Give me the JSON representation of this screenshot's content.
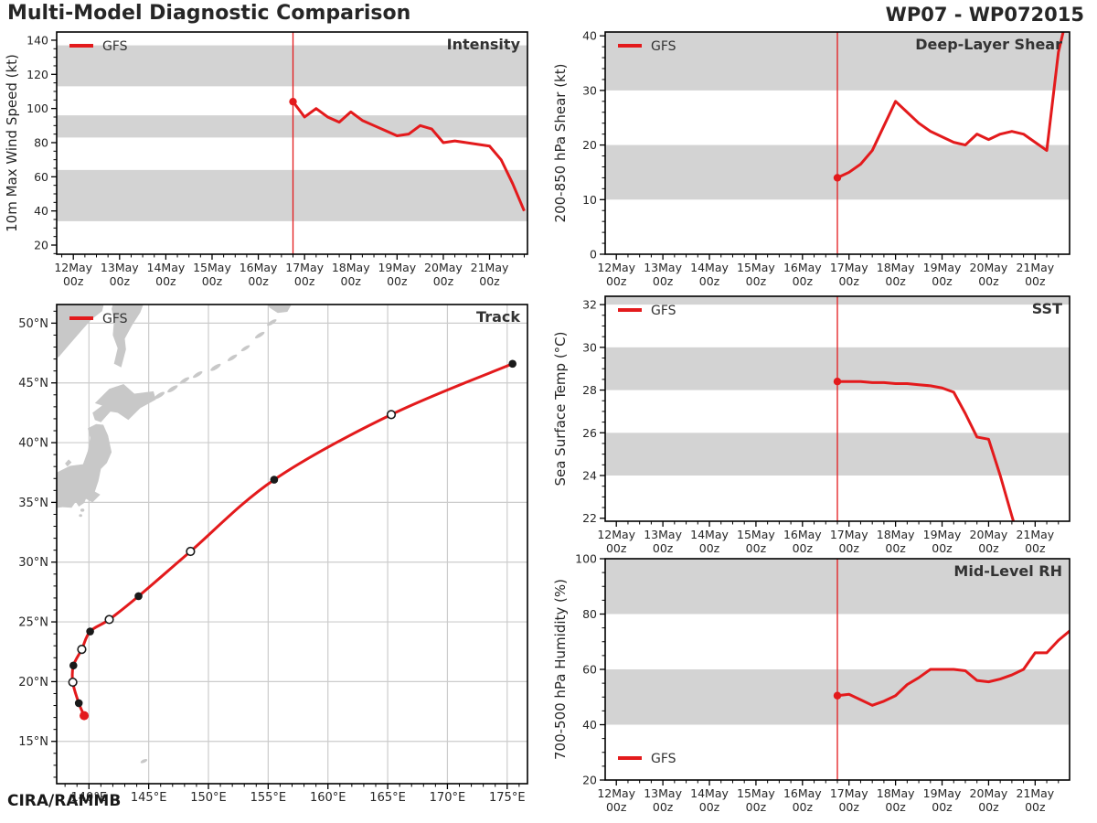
{
  "header": {
    "title": "Multi-Model Diagnostic Comparison",
    "storm_id": "WP07 - WP072015"
  },
  "footer": {
    "credit": "CIRA/RAMMB"
  },
  "legend_label": "GFS",
  "colors": {
    "accent_red": "#e31a1c",
    "band_gray": "#d3d3d3",
    "land_gray": "#c8c8c8",
    "grid_gray": "#cccccc",
    "spine_black": "#000000",
    "text_dark": "#262626",
    "marker_black": "#1a1a1a",
    "marker_open_fill": "#ffffff"
  },
  "time_axis": {
    "tick_days": [
      "12May",
      "13May",
      "14May",
      "15May",
      "16May",
      "17May",
      "18May",
      "19May",
      "20May",
      "21May"
    ],
    "tick_values": [
      12,
      13,
      14,
      15,
      16,
      17,
      18,
      19,
      20,
      21
    ],
    "tick_hour": "00z",
    "forecast_start_day": 16.75
  },
  "chart_data": [
    {
      "id": "intensity",
      "type": "line",
      "title": "Intensity",
      "ylabel": "10m Max Wind Speed (kt)",
      "ylim": [
        14.65,
        144.8
      ],
      "yticks": [
        20,
        40,
        60,
        80,
        100,
        120,
        140
      ],
      "yminor_step": 5,
      "bands": [
        [
          34,
          64
        ],
        [
          83,
          96
        ],
        [
          113,
          137
        ]
      ],
      "legend_position": "top-left",
      "series": [
        {
          "name": "GFS",
          "x": [
            16.75,
            17.0,
            17.25,
            17.5,
            17.75,
            18.0,
            18.25,
            18.5,
            18.75,
            19.0,
            19.25,
            19.5,
            19.75,
            20.0,
            20.25,
            20.5,
            20.75,
            21.0,
            21.25,
            21.5,
            21.75
          ],
          "values": [
            104,
            95,
            100,
            95,
            92,
            98,
            93,
            90,
            87,
            84,
            85,
            90,
            88,
            80,
            81,
            80,
            79,
            78,
            70,
            56,
            40
          ]
        }
      ]
    },
    {
      "id": "shear",
      "type": "line",
      "title": "Deep-Layer Shear",
      "ylabel": "200-850 hPa Shear (kt)",
      "ylim": [
        0,
        40.7
      ],
      "yticks": [
        0,
        10,
        20,
        30,
        40
      ],
      "yminor_step": 2,
      "bands": [
        [
          10,
          20
        ],
        [
          30,
          40.7
        ]
      ],
      "legend_position": "top-left",
      "series": [
        {
          "name": "GFS",
          "x": [
            16.75,
            17.0,
            17.25,
            17.5,
            17.75,
            18.0,
            18.25,
            18.5,
            18.75,
            19.0,
            19.25,
            19.5,
            19.75,
            20.0,
            20.25,
            20.5,
            20.75,
            21.0,
            21.25,
            21.5,
            21.75
          ],
          "values": [
            14,
            15,
            16.5,
            19,
            23.5,
            28,
            26,
            24,
            22.5,
            21.5,
            20.5,
            20,
            22,
            21,
            22,
            22.5,
            22,
            20.5,
            19,
            37,
            46
          ]
        }
      ]
    },
    {
      "id": "sst",
      "type": "line",
      "title": "SST",
      "ylabel": "Sea Surface Temp (°C)",
      "ylim": [
        21.86,
        32.39
      ],
      "yticks": [
        22,
        24,
        26,
        28,
        30,
        32
      ],
      "yminor_step": 0.5,
      "bands": [
        [
          24,
          26
        ],
        [
          28,
          30
        ],
        [
          32,
          32.39
        ]
      ],
      "legend_position": "top-left",
      "series": [
        {
          "name": "GFS",
          "x": [
            16.75,
            17.0,
            17.25,
            17.5,
            17.75,
            18.0,
            18.25,
            18.5,
            18.75,
            19.0,
            19.25,
            19.5,
            19.75,
            20.0,
            20.25,
            20.5,
            20.75
          ],
          "values": [
            28.4,
            28.4,
            28.4,
            28.35,
            28.35,
            28.3,
            28.3,
            28.25,
            28.2,
            28.1,
            27.9,
            26.9,
            25.8,
            25.7,
            24.0,
            22.1,
            20.3
          ]
        }
      ]
    },
    {
      "id": "rh",
      "type": "line",
      "title": "Mid-Level RH",
      "ylabel": "700-500 hPa Humidity (%)",
      "ylim": [
        20,
        100
      ],
      "yticks": [
        20,
        40,
        60,
        80,
        100
      ],
      "yminor_step": 5,
      "bands": [
        [
          40,
          60
        ],
        [
          80,
          100
        ]
      ],
      "legend_position": "bottom-left",
      "series": [
        {
          "name": "GFS",
          "x": [
            16.75,
            17.0,
            17.25,
            17.5,
            17.75,
            18.0,
            18.25,
            18.5,
            18.75,
            19.0,
            19.25,
            19.5,
            19.75,
            20.0,
            20.25,
            20.5,
            20.75,
            21.0,
            21.25,
            21.5,
            21.75
          ],
          "values": [
            50.5,
            51,
            49,
            47,
            48.5,
            50.5,
            54.5,
            57,
            60,
            60,
            60,
            59.5,
            56,
            55.5,
            56.5,
            58,
            60,
            66,
            66,
            70.5,
            74
          ]
        }
      ]
    },
    {
      "id": "track",
      "type": "map",
      "title": "Track",
      "lon_range": [
        137.3,
        176.7
      ],
      "lat_range": [
        11.46,
        51.56
      ],
      "lon_ticks": {
        "values": [
          140,
          145,
          150,
          155,
          160,
          165,
          170,
          175
        ],
        "labels": [
          "140°E",
          "145°E",
          "150°E",
          "155°E",
          "160°E",
          "165°E",
          "170°E",
          "175°E"
        ]
      },
      "lat_ticks": {
        "values": [
          15,
          20,
          25,
          30,
          35,
          40,
          45,
          50
        ],
        "labels": [
          "15°N",
          "20°N",
          "25°N",
          "30°N",
          "35°N",
          "40°N",
          "45°N",
          "50°N"
        ]
      },
      "points": [
        {
          "lon": 139.6,
          "lat": 17.15,
          "marker": "start"
        },
        {
          "lon": 139.15,
          "lat": 18.2,
          "marker": "filled"
        },
        {
          "lon": 138.65,
          "lat": 19.95,
          "marker": "open"
        },
        {
          "lon": 138.7,
          "lat": 21.35,
          "marker": "filled"
        },
        {
          "lon": 139.4,
          "lat": 22.7,
          "marker": "open"
        },
        {
          "lon": 140.1,
          "lat": 24.2,
          "marker": "filled"
        },
        {
          "lon": 141.7,
          "lat": 25.2,
          "marker": "open"
        },
        {
          "lon": 144.15,
          "lat": 27.15,
          "marker": "filled"
        },
        {
          "lon": 148.5,
          "lat": 30.9,
          "marker": "open"
        },
        {
          "lon": 155.5,
          "lat": 36.9,
          "marker": "filled"
        },
        {
          "lon": 165.3,
          "lat": 42.35,
          "marker": "open"
        },
        {
          "lon": 175.45,
          "lat": 46.6,
          "marker": "filled"
        }
      ],
      "land": {
        "polygons": [
          {
            "name": "russia-coast",
            "pts": [
              [
                136.8,
                52.2
              ],
              [
                141.4,
                52.2
              ],
              [
                141.1,
                51.0
              ],
              [
                140.2,
                50.3
              ],
              [
                139.4,
                49.4
              ],
              [
                138.7,
                48.6
              ],
              [
                138.1,
                47.9
              ],
              [
                137.5,
                47.2
              ],
              [
                136.8,
                46.8
              ]
            ]
          },
          {
            "name": "sakhalin",
            "pts": [
              [
                142.2,
                52.2
              ],
              [
                144.8,
                52.2
              ],
              [
                144.3,
                50.9
              ],
              [
                143.6,
                49.8
              ],
              [
                143.0,
                48.7
              ],
              [
                143.1,
                47.8
              ],
              [
                142.7,
                46.3
              ],
              [
                142.1,
                46.6
              ],
              [
                142.4,
                47.9
              ],
              [
                142.0,
                49.0
              ],
              [
                142.1,
                50.2
              ],
              [
                141.9,
                51.2
              ]
            ]
          },
          {
            "name": "hokkaido",
            "pts": [
              [
                140.5,
                41.9
              ],
              [
                140.3,
                42.5
              ],
              [
                141.1,
                43.1
              ],
              [
                140.5,
                43.3
              ],
              [
                141.7,
                44.5
              ],
              [
                142.9,
                44.9
              ],
              [
                143.8,
                44.1
              ],
              [
                145.4,
                44.3
              ],
              [
                145.6,
                43.6
              ],
              [
                144.3,
                42.9
              ],
              [
                143.3,
                41.9
              ],
              [
                142.4,
                42.5
              ],
              [
                141.8,
                42.6
              ],
              [
                141.0,
                41.7
              ]
            ]
          },
          {
            "name": "honshu",
            "pts": [
              [
                141.2,
                41.5
              ],
              [
                141.6,
                40.6
              ],
              [
                141.9,
                39.2
              ],
              [
                141.5,
                38.3
              ],
              [
                141.0,
                37.8
              ],
              [
                140.8,
                36.8
              ],
              [
                140.5,
                35.9
              ],
              [
                140.95,
                35.65
              ],
              [
                140.3,
                35.0
              ],
              [
                139.75,
                35.3
              ],
              [
                139.6,
                34.95
              ],
              [
                139.15,
                34.65
              ],
              [
                138.9,
                35.05
              ],
              [
                138.55,
                34.55
              ],
              [
                137.8,
                34.6
              ],
              [
                137.0,
                34.5
              ],
              [
                136.9,
                37.3
              ],
              [
                138.4,
                38.05
              ],
              [
                139.5,
                38.2
              ],
              [
                139.9,
                39.3
              ],
              [
                140.1,
                40.4
              ],
              [
                139.9,
                41.2
              ],
              [
                140.6,
                41.55
              ]
            ]
          },
          {
            "name": "sado-island",
            "pts": [
              [
                138.2,
                38.0
              ],
              [
                138.55,
                38.35
              ],
              [
                138.3,
                38.6
              ],
              [
                138.0,
                38.25
              ]
            ]
          },
          {
            "name": "kamchatka-tip",
            "pts": [
              [
                154.8,
                52.0
              ],
              [
                157.2,
                52.0
              ],
              [
                156.6,
                50.95
              ],
              [
                155.8,
                50.85
              ],
              [
                155.1,
                51.3
              ]
            ]
          }
        ],
        "islets": [
          {
            "name": "kuril-1",
            "lon": 145.9,
            "lat": 43.95,
            "rx": 6.5,
            "ry": 2.2,
            "rot": -32
          },
          {
            "name": "kuril-2",
            "lon": 147.0,
            "lat": 44.5,
            "rx": 6.5,
            "ry": 2.2,
            "rot": -32
          },
          {
            "name": "kuril-3",
            "lon": 148.0,
            "lat": 45.2,
            "rx": 6.0,
            "ry": 2.0,
            "rot": -32
          },
          {
            "name": "kuril-4",
            "lon": 149.1,
            "lat": 45.7,
            "rx": 6.0,
            "ry": 2.0,
            "rot": -32
          },
          {
            "name": "kuril-5",
            "lon": 150.6,
            "lat": 46.3,
            "rx": 6.5,
            "ry": 2.2,
            "rot": -32
          },
          {
            "name": "kuril-6",
            "lon": 152.0,
            "lat": 47.1,
            "rx": 6.0,
            "ry": 2.0,
            "rot": -32
          },
          {
            "name": "kuril-7",
            "lon": 153.1,
            "lat": 47.9,
            "rx": 5.5,
            "ry": 1.8,
            "rot": -32
          },
          {
            "name": "kuril-8",
            "lon": 154.3,
            "lat": 49.0,
            "rx": 6.0,
            "ry": 2.0,
            "rot": -32
          },
          {
            "name": "kuril-9",
            "lon": 155.3,
            "lat": 50.05,
            "rx": 6.0,
            "ry": 2.0,
            "rot": -32
          },
          {
            "name": "izu-oshima",
            "lon": 139.45,
            "lat": 34.35,
            "rx": 2.2,
            "ry": 1.8,
            "rot": 0
          },
          {
            "name": "izu-south",
            "lon": 139.3,
            "lat": 33.9,
            "rx": 1.8,
            "ry": 1.5,
            "rot": 0
          },
          {
            "name": "guam",
            "lon": 144.6,
            "lat": 13.35,
            "rx": 4.0,
            "ry": 1.8,
            "rot": -25
          }
        ]
      }
    }
  ]
}
